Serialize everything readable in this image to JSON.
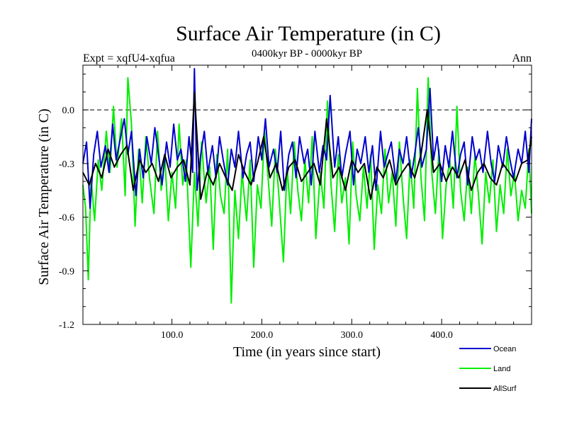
{
  "chart_data": {
    "type": "line",
    "title": "Surface Air Temperature (in C)",
    "subtitle": "0400kyr BP - 0000kyr BP",
    "expt_label": "Expt = xqfU4-xqfua",
    "season_label": "Ann",
    "xlabel": "Time (in years since start)",
    "ylabel": "Surface Air Temperature (in C)",
    "xlim": [
      1,
      500
    ],
    "ylim": [
      -1.2,
      0.25
    ],
    "x_ticks": [
      100,
      200,
      300,
      400
    ],
    "x_tick_labels": [
      "100.0",
      "200.0",
      "300.0",
      "400.0"
    ],
    "y_ticks": [
      -1.2,
      -0.9,
      -0.6,
      -0.3,
      0.0
    ],
    "y_tick_labels": [
      "-1.2",
      "-0.9",
      "-0.6",
      "-0.3",
      "0.0"
    ],
    "reference_line": 0.0,
    "legend_position": "bottom-right, outside plot",
    "series": [
      {
        "name": "Land",
        "color": "#00ee00",
        "x": [
          1,
          4,
          7,
          10,
          14,
          18,
          22,
          27,
          31,
          35,
          39,
          44,
          48,
          51,
          55,
          59,
          63,
          67,
          71,
          75,
          80,
          84,
          88,
          92,
          96,
          100,
          104,
          108,
          112,
          116,
          121,
          125,
          129,
          133,
          138,
          142,
          146,
          150,
          154,
          158,
          162,
          166,
          170,
          174,
          178,
          183,
          187,
          191,
          195,
          199,
          203,
          207,
          211,
          215,
          219,
          224,
          228,
          232,
          236,
          240,
          244,
          248,
          252,
          256,
          260,
          265,
          269,
          273,
          277,
          281,
          285,
          289,
          293,
          297,
          301,
          305,
          309,
          313,
          317,
          321,
          325,
          329,
          333,
          337,
          341,
          345,
          349,
          353,
          357,
          361,
          365,
          369,
          373,
          377,
          381,
          385,
          389,
          393,
          397,
          401,
          405,
          409,
          413,
          417,
          421,
          425,
          429,
          433,
          437,
          441,
          445,
          449,
          453,
          457,
          461,
          465,
          469,
          473,
          477,
          481,
          485,
          489,
          493,
          497,
          500
        ],
        "values": [
          -0.42,
          -0.55,
          -0.95,
          -0.38,
          -0.62,
          -0.28,
          -0.45,
          -0.12,
          -0.35,
          0.02,
          -0.32,
          -0.05,
          -0.48,
          0.18,
          -0.08,
          -0.65,
          -0.22,
          -0.52,
          -0.15,
          -0.38,
          -0.58,
          -0.12,
          -0.45,
          -0.25,
          -0.62,
          -0.35,
          -0.55,
          -0.08,
          -0.42,
          -0.28,
          -0.88,
          -0.35,
          -0.65,
          -0.18,
          -0.52,
          -0.32,
          -0.78,
          -0.25,
          -0.48,
          -0.58,
          -0.22,
          -1.08,
          -0.45,
          -0.72,
          -0.35,
          -0.62,
          -0.28,
          -0.88,
          -0.42,
          -0.55,
          -0.12,
          -0.38,
          -0.65,
          -0.22,
          -0.48,
          -0.85,
          -0.32,
          -0.58,
          -0.18,
          -0.45,
          -0.62,
          -0.28,
          -0.52,
          -0.15,
          -0.72,
          -0.35,
          -0.55,
          0.05,
          -0.42,
          -0.68,
          -0.25,
          -0.52,
          -0.38,
          -0.75,
          -0.18,
          -0.48,
          -0.62,
          -0.32,
          -0.55,
          -0.25,
          -0.78,
          -0.42,
          -0.58,
          -0.22,
          -0.52,
          -0.35,
          -0.65,
          -0.18,
          -0.48,
          -0.72,
          -0.28,
          -0.55,
          0.12,
          -0.38,
          -0.62,
          0.18,
          -0.35,
          -0.58,
          -0.22,
          -0.72,
          -0.42,
          -0.28,
          -0.55,
          0.02,
          -0.45,
          -0.62,
          -0.32,
          -0.58,
          -0.25,
          -0.48,
          -0.75,
          -0.35,
          -0.52,
          -0.28,
          -0.68,
          -0.42,
          -0.58,
          -0.22,
          -0.48,
          -0.35,
          -0.62,
          -0.45,
          -0.55,
          -0.22,
          -0.58
        ]
      },
      {
        "name": "Ocean",
        "color": "#0000cc",
        "x": [
          1,
          5,
          9,
          13,
          17,
          21,
          26,
          30,
          34,
          38,
          43,
          47,
          51,
          55,
          60,
          64,
          68,
          72,
          77,
          81,
          85,
          89,
          94,
          98,
          102,
          106,
          110,
          115,
          119,
          123,
          125,
          128,
          132,
          136,
          140,
          145,
          149,
          153,
          157,
          162,
          166,
          170,
          174,
          179,
          183,
          187,
          191,
          196,
          200,
          204,
          208,
          213,
          217,
          221,
          225,
          230,
          234,
          238,
          242,
          247,
          251,
          255,
          259,
          264,
          268,
          272,
          276,
          281,
          285,
          289,
          293,
          298,
          302,
          306,
          310,
          315,
          319,
          323,
          327,
          332,
          336,
          340,
          344,
          349,
          353,
          357,
          361,
          366,
          370,
          374,
          378,
          383,
          387,
          391,
          395,
          400,
          404,
          408,
          412,
          417,
          421,
          425,
          429,
          434,
          438,
          442,
          446,
          451,
          455,
          459,
          463,
          468,
          472,
          476,
          480,
          485,
          489,
          493,
          497,
          500
        ],
        "values": [
          -0.3,
          -0.18,
          -0.55,
          -0.25,
          -0.12,
          -0.32,
          -0.2,
          -0.35,
          -0.08,
          -0.28,
          -0.15,
          -0.05,
          -0.25,
          -0.12,
          -0.48,
          -0.22,
          -0.38,
          -0.15,
          -0.3,
          -0.1,
          -0.25,
          -0.42,
          -0.18,
          -0.32,
          -0.08,
          -0.28,
          -0.22,
          -0.4,
          -0.15,
          -0.35,
          0.23,
          -0.45,
          -0.25,
          -0.12,
          -0.35,
          -0.2,
          -0.38,
          -0.15,
          -0.28,
          -0.42,
          -0.22,
          -0.32,
          -0.12,
          -0.38,
          -0.25,
          -0.18,
          -0.4,
          -0.15,
          -0.28,
          -0.05,
          -0.32,
          -0.22,
          -0.35,
          -0.12,
          -0.45,
          -0.25,
          -0.18,
          -0.38,
          -0.15,
          -0.3,
          -0.22,
          -0.42,
          -0.12,
          -0.35,
          -0.2,
          -0.28,
          0.08,
          -0.32,
          -0.15,
          -0.38,
          -0.25,
          -0.12,
          -0.42,
          -0.22,
          -0.3,
          -0.15,
          -0.35,
          -0.2,
          -0.45,
          -0.12,
          -0.32,
          -0.25,
          -0.18,
          -0.4,
          -0.22,
          -0.3,
          -0.15,
          -0.38,
          -0.25,
          -0.1,
          -0.32,
          -0.22,
          0.12,
          -0.28,
          -0.15,
          -0.4,
          -0.2,
          -0.32,
          -0.12,
          -0.38,
          -0.25,
          -0.18,
          -0.42,
          -0.15,
          -0.28,
          -0.22,
          -0.35,
          -0.12,
          -0.3,
          -0.4,
          -0.2,
          -0.32,
          -0.15,
          -0.28,
          -0.38,
          -0.22,
          -0.3,
          -0.12,
          -0.35,
          -0.05
        ]
      },
      {
        "name": "AllSurf",
        "color": "#000000",
        "x": [
          1,
          8,
          15,
          22,
          29,
          36,
          43,
          50,
          57,
          64,
          71,
          78,
          85,
          92,
          99,
          106,
          113,
          120,
          125,
          132,
          139,
          146,
          153,
          160,
          167,
          174,
          181,
          188,
          195,
          202,
          209,
          216,
          223,
          230,
          237,
          244,
          251,
          258,
          265,
          272,
          279,
          286,
          293,
          300,
          307,
          314,
          321,
          328,
          335,
          342,
          349,
          356,
          363,
          370,
          377,
          384,
          391,
          398,
          405,
          412,
          419,
          426,
          433,
          440,
          447,
          454,
          461,
          468,
          475,
          482,
          489,
          496,
          500
        ],
        "values": [
          -0.35,
          -0.42,
          -0.3,
          -0.38,
          -0.22,
          -0.32,
          -0.25,
          -0.2,
          -0.45,
          -0.28,
          -0.35,
          -0.3,
          -0.4,
          -0.25,
          -0.38,
          -0.32,
          -0.28,
          -0.42,
          0.1,
          -0.5,
          -0.35,
          -0.42,
          -0.3,
          -0.38,
          -0.45,
          -0.25,
          -0.35,
          -0.42,
          -0.3,
          -0.15,
          -0.38,
          -0.3,
          -0.45,
          -0.32,
          -0.28,
          -0.4,
          -0.35,
          -0.3,
          -0.42,
          -0.05,
          -0.38,
          -0.32,
          -0.45,
          -0.28,
          -0.35,
          -0.3,
          -0.5,
          -0.32,
          -0.38,
          -0.28,
          -0.42,
          -0.35,
          -0.3,
          -0.38,
          -0.25,
          0.0,
          -0.35,
          -0.3,
          -0.4,
          -0.32,
          -0.38,
          -0.28,
          -0.45,
          -0.35,
          -0.3,
          -0.38,
          -0.42,
          -0.3,
          -0.35,
          -0.4,
          -0.3,
          -0.28,
          -0.15
        ]
      }
    ]
  }
}
